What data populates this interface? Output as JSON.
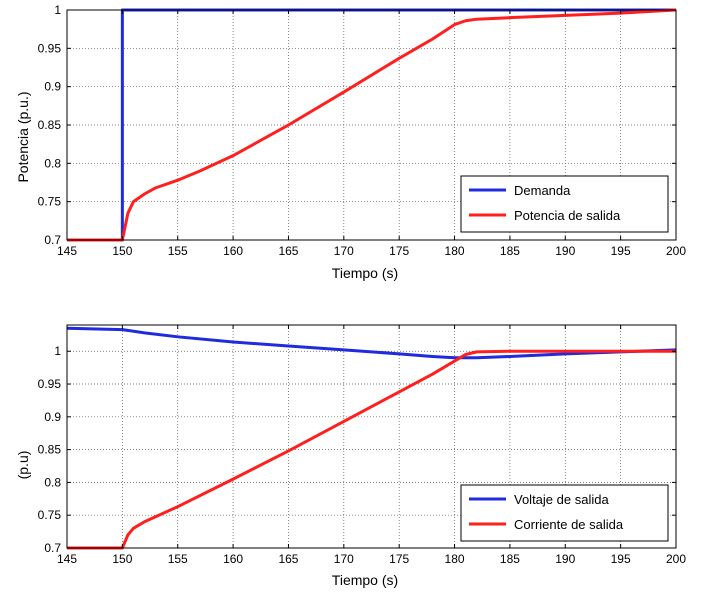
{
  "chart_data": [
    {
      "type": "line",
      "xlabel": "Tiempo (s)",
      "ylabel": "Potencia (p.u.)",
      "xlim": [
        145,
        200
      ],
      "ylim": [
        0.7,
        1.0
      ],
      "xticks": [
        "145",
        "150",
        "155",
        "160",
        "165",
        "170",
        "175",
        "180",
        "185",
        "190",
        "195",
        "200"
      ],
      "yticks": [
        "0.7",
        "0.75",
        "0.8",
        "0.85",
        "0.9",
        "0.95",
        "1"
      ],
      "grid": true,
      "legend_position": "bottom-right",
      "series": [
        {
          "name": "Demanda",
          "color": "#1f2bdc",
          "points": [
            [
              145,
              0.7
            ],
            [
              150,
              0.7
            ],
            [
              150,
              1.0
            ],
            [
              200,
              1.0
            ]
          ]
        },
        {
          "name": "Potencia de salida",
          "color": "#ff1f1f",
          "points": [
            [
              145,
              0.7
            ],
            [
              150,
              0.7
            ],
            [
              150.5,
              0.735
            ],
            [
              151,
              0.75
            ],
            [
              152,
              0.76
            ],
            [
              153,
              0.768
            ],
            [
              155,
              0.778
            ],
            [
              157,
              0.79
            ],
            [
              160,
              0.81
            ],
            [
              165,
              0.85
            ],
            [
              170,
              0.893
            ],
            [
              175,
              0.937
            ],
            [
              178,
              0.962
            ],
            [
              180,
              0.981
            ],
            [
              181,
              0.986
            ],
            [
              182,
              0.988
            ],
            [
              185,
              0.99
            ],
            [
              190,
              0.993
            ],
            [
              195,
              0.996
            ],
            [
              200,
              1.0
            ]
          ]
        }
      ]
    },
    {
      "type": "line",
      "xlabel": "Tiempo (s)",
      "ylabel": "(p.u)",
      "xlim": [
        145,
        200
      ],
      "ylim": [
        0.7,
        1.04
      ],
      "xticks": [
        "145",
        "150",
        "155",
        "160",
        "165",
        "170",
        "175",
        "180",
        "185",
        "190",
        "195",
        "200"
      ],
      "yticks": [
        "0.7",
        "0.75",
        "0.8",
        "0.85",
        "0.9",
        "0.95",
        "1"
      ],
      "grid": true,
      "legend_position": "bottom-right",
      "series": [
        {
          "name": "Voltaje de salida",
          "color": "#1f2bdc",
          "points": [
            [
              145,
              1.035
            ],
            [
              150,
              1.033
            ],
            [
              152,
              1.028
            ],
            [
              155,
              1.022
            ],
            [
              160,
              1.014
            ],
            [
              165,
              1.008
            ],
            [
              170,
              1.002
            ],
            [
              175,
              0.996
            ],
            [
              178,
              0.992
            ],
            [
              180,
              0.99
            ],
            [
              182,
              0.99
            ],
            [
              185,
              0.992
            ],
            [
              190,
              0.996
            ],
            [
              195,
              0.999
            ],
            [
              200,
              1.002
            ]
          ]
        },
        {
          "name": "Corriente de salida",
          "color": "#ff1f1f",
          "points": [
            [
              145,
              0.7
            ],
            [
              150,
              0.7
            ],
            [
              150.5,
              0.72
            ],
            [
              151,
              0.73
            ],
            [
              152,
              0.74
            ],
            [
              155,
              0.763
            ],
            [
              160,
              0.805
            ],
            [
              165,
              0.848
            ],
            [
              170,
              0.893
            ],
            [
              175,
              0.938
            ],
            [
              178,
              0.965
            ],
            [
              180,
              0.985
            ],
            [
              181,
              0.995
            ],
            [
              182,
              0.999
            ],
            [
              185,
              1.0
            ],
            [
              190,
              1.0
            ],
            [
              195,
              1.0
            ],
            [
              200,
              1.0
            ]
          ]
        }
      ]
    }
  ]
}
